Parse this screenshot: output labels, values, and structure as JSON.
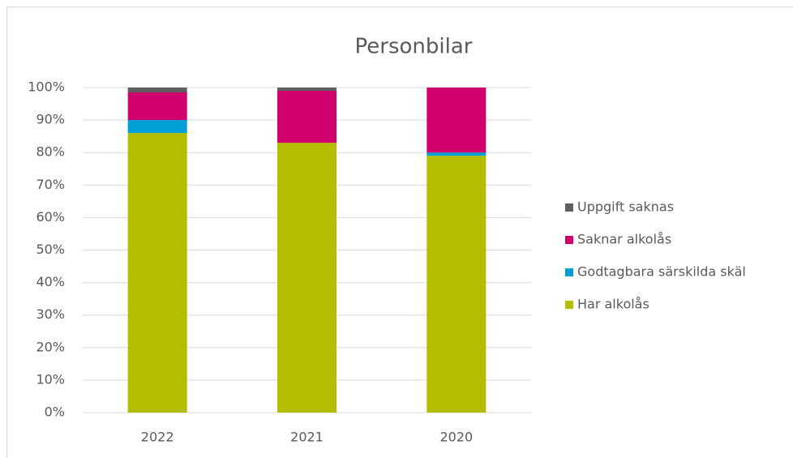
{
  "chart_data": {
    "type": "stacked_bar",
    "title": "Personbilar",
    "categories": [
      "2022",
      "2021",
      "2020"
    ],
    "series": [
      {
        "name": "Har alkolås",
        "color": "#b5bd00",
        "values": [
          86,
          83,
          79
        ]
      },
      {
        "name": "Godtagbara särskilda skäl",
        "color": "#00a0d6",
        "values": [
          4,
          0,
          1
        ]
      },
      {
        "name": "Saknar alkolås",
        "color": "#d0006f",
        "values": [
          8.5,
          16,
          20
        ]
      },
      {
        "name": "Uppgift saknas",
        "color": "#5f5f5f",
        "values": [
          1.5,
          1,
          0
        ]
      }
    ],
    "ylim": [
      0,
      100
    ],
    "yticks": [
      {
        "value": 0,
        "label": "0%"
      },
      {
        "value": 10,
        "label": "10%"
      },
      {
        "value": 20,
        "label": "20%"
      },
      {
        "value": 30,
        "label": "30%"
      },
      {
        "value": 40,
        "label": "40%"
      },
      {
        "value": 50,
        "label": "50%"
      },
      {
        "value": 60,
        "label": "60%"
      },
      {
        "value": 70,
        "label": "70%"
      },
      {
        "value": 80,
        "label": "80%"
      },
      {
        "value": 90,
        "label": "90%"
      },
      {
        "value": 100,
        "label": "100%"
      }
    ],
    "grid": true,
    "legend": "right"
  }
}
